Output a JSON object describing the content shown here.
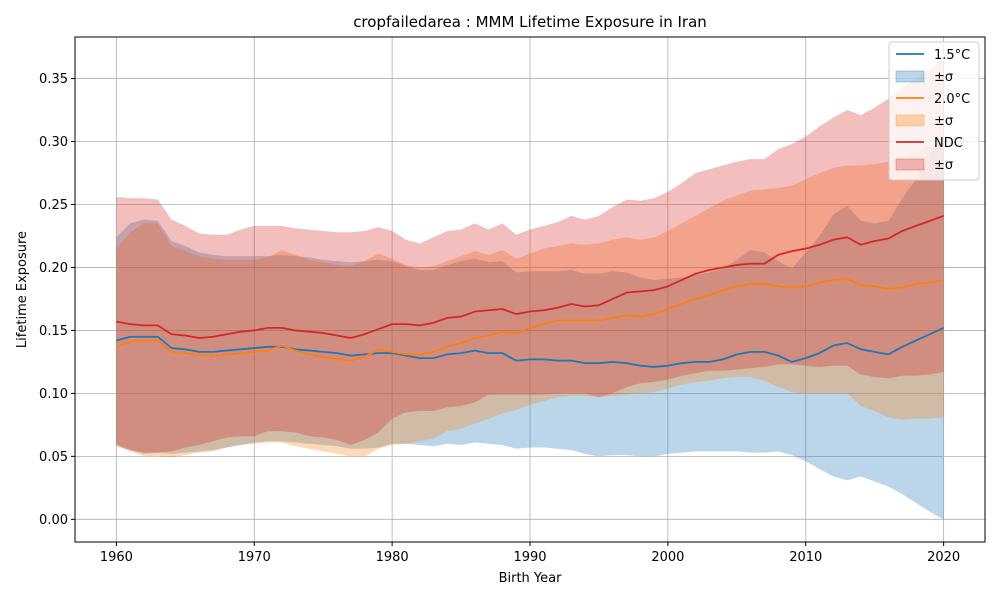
{
  "chart_data": {
    "type": "area",
    "title": "cropfailedarea : MMM Lifetime Exposure in Iran",
    "xlabel": "Birth Year",
    "ylabel": "Lifetime Exposure",
    "xlim": [
      1957,
      2023
    ],
    "ylim": [
      -0.018,
      0.383
    ],
    "xticks": [
      1960,
      1970,
      1980,
      1990,
      2000,
      2010,
      2020
    ],
    "yticks": [
      0.0,
      0.05,
      0.1,
      0.15,
      0.2,
      0.25,
      0.3,
      0.35
    ],
    "ytick_labels": [
      "0.00",
      "0.05",
      "0.10",
      "0.15",
      "0.20",
      "0.25",
      "0.30",
      "0.35"
    ],
    "grid": true,
    "legend_position": "top-right",
    "x": [
      1960,
      1961,
      1962,
      1963,
      1964,
      1965,
      1966,
      1967,
      1968,
      1969,
      1970,
      1971,
      1972,
      1973,
      1974,
      1975,
      1976,
      1977,
      1978,
      1979,
      1980,
      1981,
      1982,
      1983,
      1984,
      1985,
      1986,
      1987,
      1988,
      1989,
      1990,
      1991,
      1992,
      1993,
      1994,
      1995,
      1996,
      1997,
      1998,
      1999,
      2000,
      2001,
      2002,
      2003,
      2004,
      2005,
      2006,
      2007,
      2008,
      2009,
      2010,
      2011,
      2012,
      2013,
      2014,
      2015,
      2016,
      2017,
      2018,
      2019,
      2020
    ],
    "series": [
      {
        "name": "1.5°C",
        "band_label": "±σ",
        "color": "#1f77b4",
        "band_color": "#1f77b4",
        "mean": [
          0.142,
          0.145,
          0.145,
          0.145,
          0.136,
          0.135,
          0.133,
          0.133,
          0.134,
          0.135,
          0.136,
          0.137,
          0.137,
          0.135,
          0.134,
          0.133,
          0.132,
          0.13,
          0.131,
          0.132,
          0.132,
          0.13,
          0.128,
          0.128,
          0.131,
          0.132,
          0.134,
          0.132,
          0.132,
          0.126,
          0.127,
          0.127,
          0.126,
          0.126,
          0.124,
          0.124,
          0.125,
          0.124,
          0.122,
          0.121,
          0.122,
          0.124,
          0.125,
          0.125,
          0.127,
          0.131,
          0.133,
          0.133,
          0.13,
          0.125,
          0.128,
          0.132,
          0.138,
          0.14,
          0.135,
          0.133,
          0.131,
          0.137,
          0.142,
          0.147,
          0.152
        ],
        "upper": [
          0.224,
          0.235,
          0.238,
          0.237,
          0.221,
          0.217,
          0.212,
          0.21,
          0.209,
          0.209,
          0.209,
          0.209,
          0.21,
          0.209,
          0.208,
          0.206,
          0.205,
          0.204,
          0.205,
          0.206,
          0.205,
          0.201,
          0.198,
          0.198,
          0.202,
          0.205,
          0.207,
          0.204,
          0.205,
          0.196,
          0.197,
          0.197,
          0.197,
          0.198,
          0.195,
          0.195,
          0.197,
          0.196,
          0.192,
          0.19,
          0.191,
          0.192,
          0.194,
          0.196,
          0.199,
          0.206,
          0.214,
          0.212,
          0.205,
          0.199,
          0.212,
          0.225,
          0.242,
          0.249,
          0.237,
          0.235,
          0.237,
          0.255,
          0.27,
          0.29,
          0.305
        ],
        "lower": [
          0.06,
          0.055,
          0.052,
          0.053,
          0.052,
          0.053,
          0.054,
          0.055,
          0.057,
          0.059,
          0.061,
          0.062,
          0.062,
          0.061,
          0.06,
          0.059,
          0.058,
          0.056,
          0.056,
          0.057,
          0.06,
          0.06,
          0.059,
          0.058,
          0.06,
          0.059,
          0.061,
          0.06,
          0.059,
          0.056,
          0.057,
          0.057,
          0.056,
          0.055,
          0.052,
          0.05,
          0.051,
          0.051,
          0.05,
          0.05,
          0.052,
          0.053,
          0.054,
          0.054,
          0.054,
          0.054,
          0.053,
          0.053,
          0.054,
          0.051,
          0.046,
          0.04,
          0.034,
          0.031,
          0.034,
          0.03,
          0.026,
          0.02,
          0.013,
          0.006,
          0.0
        ]
      },
      {
        "name": "2.0°C",
        "band_label": "±σ",
        "color": "#ff7f0e",
        "band_color": "#ff7f0e",
        "mean": [
          0.137,
          0.141,
          0.142,
          0.142,
          0.133,
          0.132,
          0.131,
          0.13,
          0.131,
          0.132,
          0.133,
          0.134,
          0.138,
          0.134,
          0.131,
          0.129,
          0.127,
          0.126,
          0.129,
          0.135,
          0.133,
          0.131,
          0.131,
          0.133,
          0.137,
          0.14,
          0.144,
          0.146,
          0.149,
          0.148,
          0.152,
          0.155,
          0.158,
          0.158,
          0.158,
          0.158,
          0.16,
          0.162,
          0.161,
          0.163,
          0.167,
          0.171,
          0.175,
          0.178,
          0.182,
          0.185,
          0.187,
          0.187,
          0.185,
          0.184,
          0.185,
          0.188,
          0.19,
          0.191,
          0.186,
          0.185,
          0.183,
          0.184,
          0.187,
          0.188,
          0.19
        ],
        "upper": [
          0.215,
          0.228,
          0.235,
          0.235,
          0.217,
          0.213,
          0.209,
          0.207,
          0.206,
          0.206,
          0.206,
          0.208,
          0.214,
          0.21,
          0.206,
          0.204,
          0.202,
          0.201,
          0.205,
          0.211,
          0.207,
          0.202,
          0.2,
          0.201,
          0.205,
          0.209,
          0.213,
          0.21,
          0.214,
          0.207,
          0.211,
          0.215,
          0.217,
          0.219,
          0.218,
          0.219,
          0.222,
          0.224,
          0.222,
          0.224,
          0.229,
          0.235,
          0.241,
          0.247,
          0.253,
          0.257,
          0.261,
          0.262,
          0.263,
          0.265,
          0.27,
          0.275,
          0.279,
          0.281,
          0.281,
          0.282,
          0.284,
          0.288,
          0.292,
          0.296,
          0.3
        ],
        "lower": [
          0.059,
          0.054,
          0.05,
          0.05,
          0.049,
          0.051,
          0.053,
          0.054,
          0.057,
          0.059,
          0.06,
          0.061,
          0.061,
          0.058,
          0.056,
          0.054,
          0.052,
          0.05,
          0.05,
          0.056,
          0.059,
          0.06,
          0.062,
          0.064,
          0.07,
          0.072,
          0.076,
          0.08,
          0.084,
          0.087,
          0.091,
          0.094,
          0.097,
          0.098,
          0.098,
          0.097,
          0.098,
          0.099,
          0.1,
          0.101,
          0.104,
          0.107,
          0.109,
          0.11,
          0.112,
          0.113,
          0.113,
          0.11,
          0.105,
          0.101,
          0.1,
          0.1,
          0.1,
          0.1,
          0.09,
          0.086,
          0.081,
          0.079,
          0.08,
          0.08,
          0.081
        ]
      },
      {
        "name": "NDC",
        "band_label": "±σ",
        "color": "#d62728",
        "band_color": "#d62728",
        "mean": [
          0.157,
          0.155,
          0.154,
          0.154,
          0.147,
          0.146,
          0.144,
          0.145,
          0.147,
          0.149,
          0.15,
          0.152,
          0.152,
          0.15,
          0.149,
          0.148,
          0.146,
          0.144,
          0.147,
          0.151,
          0.155,
          0.155,
          0.154,
          0.156,
          0.16,
          0.161,
          0.165,
          0.166,
          0.167,
          0.163,
          0.165,
          0.166,
          0.168,
          0.171,
          0.169,
          0.17,
          0.175,
          0.18,
          0.181,
          0.182,
          0.185,
          0.19,
          0.195,
          0.198,
          0.2,
          0.202,
          0.203,
          0.203,
          0.21,
          0.213,
          0.215,
          0.218,
          0.222,
          0.224,
          0.218,
          0.221,
          0.223,
          0.229,
          0.233,
          0.237,
          0.241
        ],
        "upper": [
          0.256,
          0.255,
          0.255,
          0.254,
          0.238,
          0.233,
          0.227,
          0.226,
          0.226,
          0.23,
          0.233,
          0.233,
          0.233,
          0.231,
          0.23,
          0.229,
          0.228,
          0.228,
          0.229,
          0.232,
          0.229,
          0.222,
          0.219,
          0.224,
          0.229,
          0.23,
          0.235,
          0.23,
          0.235,
          0.226,
          0.23,
          0.233,
          0.236,
          0.241,
          0.238,
          0.241,
          0.248,
          0.254,
          0.253,
          0.255,
          0.26,
          0.267,
          0.275,
          0.278,
          0.281,
          0.284,
          0.286,
          0.286,
          0.294,
          0.298,
          0.304,
          0.312,
          0.319,
          0.325,
          0.321,
          0.327,
          0.334,
          0.343,
          0.35,
          0.357,
          0.365
        ],
        "lower": [
          0.058,
          0.055,
          0.053,
          0.053,
          0.054,
          0.057,
          0.059,
          0.062,
          0.065,
          0.066,
          0.066,
          0.07,
          0.07,
          0.069,
          0.066,
          0.065,
          0.063,
          0.059,
          0.063,
          0.069,
          0.08,
          0.085,
          0.086,
          0.086,
          0.089,
          0.09,
          0.093,
          0.099,
          0.099,
          0.099,
          0.099,
          0.099,
          0.1,
          0.1,
          0.1,
          0.097,
          0.1,
          0.105,
          0.108,
          0.109,
          0.111,
          0.114,
          0.116,
          0.118,
          0.118,
          0.119,
          0.12,
          0.121,
          0.123,
          0.123,
          0.122,
          0.121,
          0.122,
          0.122,
          0.115,
          0.113,
          0.112,
          0.114,
          0.114,
          0.115,
          0.117
        ]
      }
    ]
  }
}
